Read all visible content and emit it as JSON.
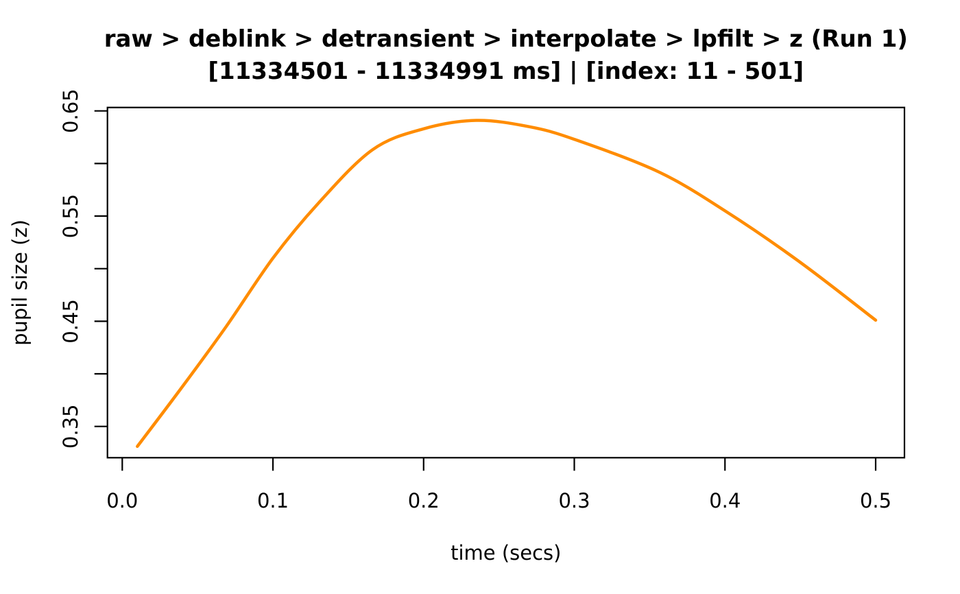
{
  "page": {
    "background": "#FFFFFF",
    "text_color": "#000000"
  },
  "chart_data": {
    "type": "line",
    "title": "raw > deblink > detransient > interpolate > lpfilt > z (Run 1)",
    "subtitle": "[11334501 - 11334991 ms] | [index: 11 - 501]",
    "xlabel": "time (secs)",
    "ylabel": "pupil size (z)",
    "xlim": [
      -0.01,
      0.52
    ],
    "ylim": [
      0.317,
      0.653
    ],
    "grid": false,
    "legend": "none",
    "line_color": "#FF8C00",
    "axis_color": "#000000",
    "x_ticks": [
      {
        "value": 0.0,
        "label": "0.0"
      },
      {
        "value": 0.1,
        "label": "0.1"
      },
      {
        "value": 0.2,
        "label": "0.2"
      },
      {
        "value": 0.3,
        "label": "0.3"
      },
      {
        "value": 0.4,
        "label": "0.4"
      },
      {
        "value": 0.5,
        "label": "0.5"
      }
    ],
    "y_ticks": [
      {
        "value": 0.65,
        "label": "0.65"
      },
      {
        "value": 0.6,
        "label": ""
      },
      {
        "value": 0.55,
        "label": "0.55"
      },
      {
        "value": 0.5,
        "label": ""
      },
      {
        "value": 0.45,
        "label": "0.45"
      },
      {
        "value": 0.4,
        "label": ""
      },
      {
        "value": 0.35,
        "label": "0.35"
      }
    ],
    "series": [
      {
        "name": "pupil size (z)",
        "x": [
          0.01,
          0.04,
          0.069,
          0.1,
          0.13,
          0.166,
          0.2,
          0.235,
          0.27,
          0.3,
          0.356,
          0.4,
          0.45,
          0.5
        ],
        "y": [
          0.331,
          0.388,
          0.445,
          0.51,
          0.562,
          0.613,
          0.633,
          0.641,
          0.635,
          0.623,
          0.592,
          0.555,
          0.506,
          0.451
        ]
      }
    ]
  }
}
